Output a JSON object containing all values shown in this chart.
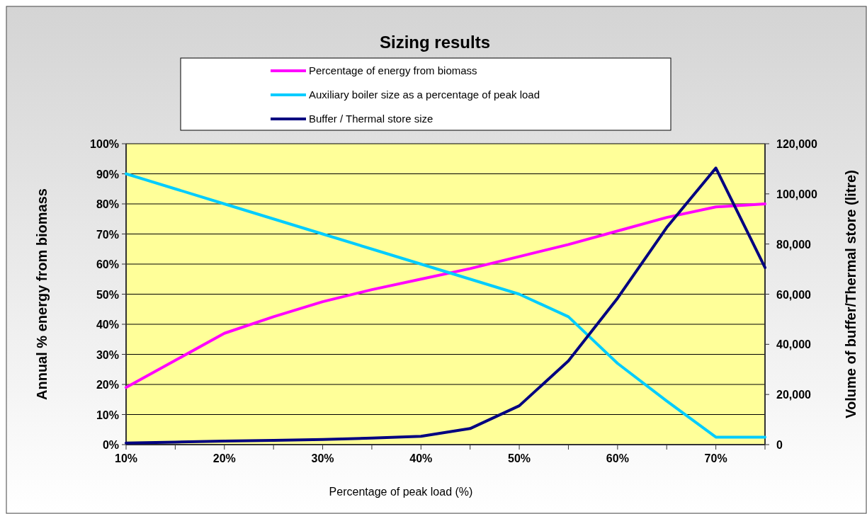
{
  "chart_data": {
    "type": "line",
    "title": "Sizing results",
    "xlabel": "Percentage of peak load (%)",
    "ylabel": "Annual  % energy from biomass",
    "y2label": "Volume of buffer/Thermal store (litre)",
    "x": [
      10,
      15,
      20,
      25,
      30,
      35,
      40,
      45,
      50,
      55,
      60,
      65,
      70,
      75
    ],
    "series": [
      {
        "name": "Percentage of energy from biomass",
        "color": "#ff00ff",
        "values": [
          19,
          28,
          37,
          42.5,
          47.5,
          51.5,
          55,
          58.5,
          62.5,
          66.5,
          71,
          75.5,
          79,
          80
        ]
      },
      {
        "name": "Auxiliary boiler size as a percentage of peak load",
        "color": "#00ccff",
        "values": [
          90,
          85,
          80,
          75,
          70,
          65,
          60,
          55,
          50,
          42.5,
          27,
          14.5,
          2.5,
          2.5
        ]
      },
      {
        "name": "Buffer / Thermal store size",
        "color": "#000080",
        "axis": "y2",
        "values": [
          650,
          1000,
          1400,
          1700,
          2050,
          2600,
          3300,
          6400,
          15500,
          33400,
          58400,
          86600,
          110300,
          70600
        ]
      }
    ],
    "xlim": [
      10,
      75
    ],
    "xticks": [
      {
        "value": 10,
        "label": "10%"
      },
      {
        "value": 15,
        "label": null
      },
      {
        "value": 20,
        "label": "20%"
      },
      {
        "value": 25,
        "label": null
      },
      {
        "value": 30,
        "label": "30%"
      },
      {
        "value": 35,
        "label": null
      },
      {
        "value": 40,
        "label": "40%"
      },
      {
        "value": 45,
        "label": null
      },
      {
        "value": 50,
        "label": "50%"
      },
      {
        "value": 55,
        "label": null
      },
      {
        "value": 60,
        "label": "60%"
      },
      {
        "value": 65,
        "label": null
      },
      {
        "value": 70,
        "label": "70%"
      },
      {
        "value": 75,
        "label": null
      }
    ],
    "ylim": [
      0,
      100
    ],
    "yticks": [
      {
        "value": 0,
        "label": "0%"
      },
      {
        "value": 10,
        "label": "10%"
      },
      {
        "value": 20,
        "label": "20%"
      },
      {
        "value": 30,
        "label": "30%"
      },
      {
        "value": 40,
        "label": "40%"
      },
      {
        "value": 50,
        "label": "50%"
      },
      {
        "value": 60,
        "label": "60%"
      },
      {
        "value": 70,
        "label": "70%"
      },
      {
        "value": 80,
        "label": "80%"
      },
      {
        "value": 90,
        "label": "90%"
      },
      {
        "value": 100,
        "label": "100%"
      }
    ],
    "y2lim": [
      0,
      120000
    ],
    "y2ticks": [
      0,
      {
        "value": 20000,
        "label": "20,000"
      },
      {
        "value": 40000,
        "label": "40,000"
      },
      {
        "value": 60000,
        "label": "60,000"
      },
      {
        "value": 80000,
        "label": "80,000"
      },
      {
        "value": 100000,
        "label": "100,000"
      },
      {
        "value": 120000,
        "label": "120,000"
      }
    ],
    "grid": "y",
    "legend": "top",
    "marker": "none",
    "line_style": "solid"
  }
}
